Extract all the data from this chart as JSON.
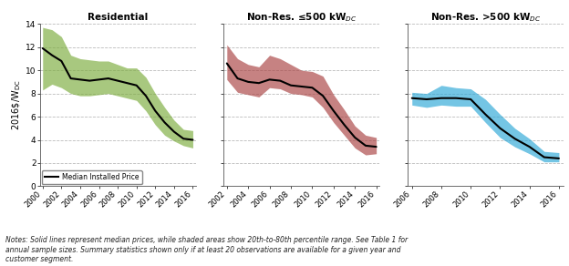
{
  "panel1": {
    "title": "Residential",
    "years": [
      2000,
      2001,
      2002,
      2003,
      2004,
      2005,
      2006,
      2007,
      2008,
      2009,
      2010,
      2011,
      2012,
      2013,
      2014,
      2015,
      2016
    ],
    "median": [
      11.9,
      11.3,
      10.8,
      9.3,
      9.2,
      9.1,
      9.2,
      9.3,
      9.1,
      8.9,
      8.7,
      7.8,
      6.5,
      5.5,
      4.7,
      4.1,
      4.0
    ],
    "p20": [
      8.3,
      8.8,
      8.5,
      8.0,
      7.8,
      7.8,
      7.9,
      8.0,
      7.8,
      7.6,
      7.4,
      6.5,
      5.3,
      4.4,
      3.9,
      3.5,
      3.3
    ],
    "p80": [
      13.7,
      13.5,
      12.9,
      11.3,
      11.0,
      10.9,
      10.8,
      10.8,
      10.5,
      10.2,
      10.2,
      9.4,
      8.0,
      6.8,
      5.7,
      4.9,
      4.8
    ],
    "shade_color": "#7AAB3B",
    "xlim": [
      2000,
      2016
    ],
    "xticks": [
      2000,
      2002,
      2004,
      2006,
      2008,
      2010,
      2012,
      2014,
      2016
    ]
  },
  "panel2": {
    "title": "Non-Res. ≤500 kW$_{DC}$",
    "years": [
      2002,
      2003,
      2004,
      2005,
      2006,
      2007,
      2008,
      2009,
      2010,
      2011,
      2012,
      2013,
      2014,
      2015,
      2016
    ],
    "median": [
      10.6,
      9.3,
      9.0,
      8.9,
      9.2,
      9.1,
      8.7,
      8.6,
      8.5,
      7.8,
      6.5,
      5.3,
      4.2,
      3.5,
      3.4
    ],
    "p20": [
      9.2,
      8.1,
      7.9,
      7.7,
      8.5,
      8.4,
      8.0,
      7.9,
      7.7,
      6.8,
      5.5,
      4.4,
      3.3,
      2.7,
      2.8
    ],
    "p80": [
      12.2,
      11.0,
      10.5,
      10.3,
      11.3,
      11.0,
      10.5,
      10.0,
      9.9,
      9.5,
      7.9,
      6.6,
      5.2,
      4.4,
      4.2
    ],
    "shade_color": "#A84040",
    "xlim": [
      2002,
      2016
    ],
    "xticks": [
      2002,
      2004,
      2006,
      2008,
      2010,
      2012,
      2014,
      2016
    ]
  },
  "panel3": {
    "title": "Non-Res. >500 kW$_{DC}$",
    "years": [
      2006,
      2007,
      2008,
      2009,
      2010,
      2011,
      2012,
      2013,
      2014,
      2015,
      2016
    ],
    "median": [
      7.6,
      7.5,
      7.6,
      7.6,
      7.5,
      6.2,
      5.0,
      4.1,
      3.4,
      2.5,
      2.4
    ],
    "p20": [
      7.0,
      6.8,
      7.0,
      6.9,
      6.9,
      5.5,
      4.2,
      3.4,
      2.8,
      2.1,
      2.1
    ],
    "p80": [
      8.1,
      8.0,
      8.7,
      8.5,
      8.4,
      7.5,
      6.2,
      5.0,
      4.1,
      3.0,
      2.9
    ],
    "shade_color": "#29A6D6",
    "xlim": [
      2006,
      2016
    ],
    "xticks": [
      2006,
      2008,
      2010,
      2012,
      2014,
      2016
    ]
  },
  "ylim": [
    0,
    14
  ],
  "yticks": [
    0,
    2,
    4,
    6,
    8,
    10,
    12,
    14
  ],
  "ylabel": "2016$/W$_{DC}$",
  "line_color": "#000000",
  "line_width": 1.5,
  "shade_alpha": 0.65,
  "legend_label": "Median Installed Price",
  "note_text": "Notes: Solid lines represent median prices, while shaded areas show 20th-to-80th percentile range. See Table 1 for\nannual sample sizes. Summary statistics shown only if at least 20 observations are available for a given year and\ncustomer segment.",
  "bg_color": "#FFFFFF",
  "grid_color": "#AAAAAA",
  "grid_style": "--",
  "grid_alpha": 0.8
}
